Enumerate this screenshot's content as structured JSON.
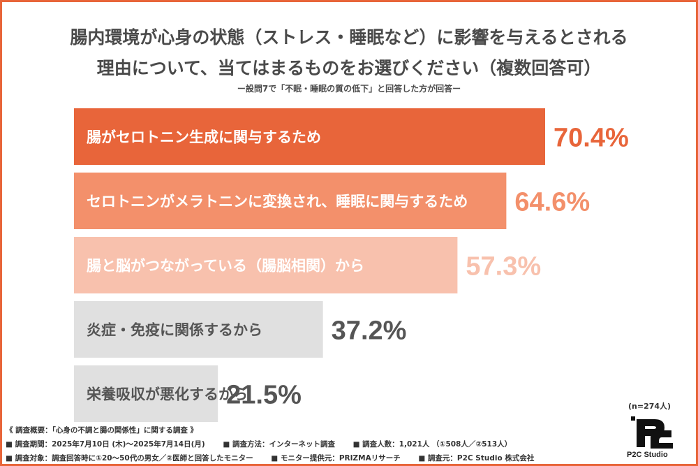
{
  "title_line1": "腸内環境が心身の状態（ストレス・睡眠など）に影響を与えるとされる",
  "title_line2": "理由について、当てはまるものをお選びください（複数回答可）",
  "subtitle": "ー設問7で「不眠・睡眠の質の低下」と回答した方が回答ー",
  "sample_size": "(n=274人)",
  "logo_text": "P2C Studio",
  "footer": {
    "line1": "《 調査概要：「心身の不調と腸の関係性」に関する調査 》",
    "period": "■ 調査期間：2025年7月10日 (木)〜2025年7月14日(月)",
    "method": "■ 調査方法：インターネット調査",
    "count": "■ 調査人数：1,021人 （①508人／②513人）",
    "target": "■ 調査対象：調査回答時に①20〜50代の男女／②医師と回答したモニター",
    "provider": "■ モニター提供元：PRIZMAリサーチ",
    "source": "■ 調査元：P2C Studio 株式会社"
  },
  "chart_data": {
    "type": "bar",
    "orientation": "horizontal",
    "categories": [
      "腸がセロトニン生成に関与するため",
      "セロトニンがメラトニンに変換され、睡眠に関与するため",
      "腸と脳がつながっている（腸脳相関）から",
      "炎症・免疫に関係するから",
      "栄養吸収が悪化するから"
    ],
    "values": [
      70.4,
      64.6,
      57.3,
      37.2,
      21.5
    ],
    "value_labels": [
      "70.4%",
      "64.6%",
      "57.3%",
      "37.2%",
      "21.5%"
    ],
    "bar_colors": [
      "#e8653a",
      "#f3906b",
      "#f8c1ad",
      "#e0e0e0",
      "#e0e0e0"
    ],
    "label_colors": [
      "#ffffff",
      "#ffffff",
      "#ffffff",
      "#555555",
      "#555555"
    ],
    "value_colors": [
      "#e8653a",
      "#f3906b",
      "#f8c1ad",
      "#555555",
      "#555555"
    ],
    "xlim": [
      0,
      100
    ]
  }
}
